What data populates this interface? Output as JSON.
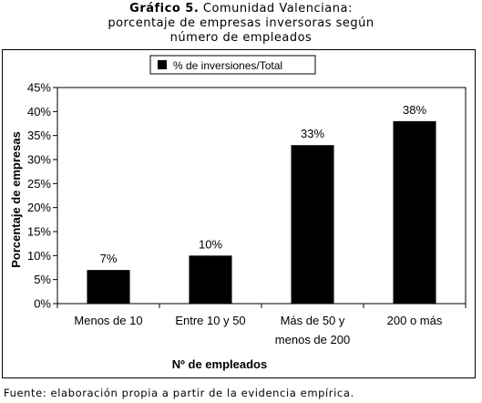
{
  "header": {
    "title_bold": "Gráfico 5.",
    "title_rest": " Comunidad Valenciana:",
    "line2": "porcentaje de empresas inversoras según",
    "line3": "número de empleados"
  },
  "chart_data": {
    "type": "bar",
    "categories": [
      "Menos de 10",
      "Entre 10 y 50",
      "Más de 50 y menos de 200",
      "200 o más"
    ],
    "category_lines": [
      [
        "Menos de 10"
      ],
      [
        "Entre 10 y 50"
      ],
      [
        "Más de 50 y",
        "menos de 200"
      ],
      [
        "200 o más"
      ]
    ],
    "series": [
      {
        "name": "% de inversiones/Total",
        "values": [
          7,
          10,
          33,
          38
        ]
      }
    ],
    "data_labels": [
      "7%",
      "10%",
      "33%",
      "38%"
    ],
    "yticks": [
      0,
      5,
      10,
      15,
      20,
      25,
      30,
      35,
      40,
      45
    ],
    "ytick_labels": [
      "0%",
      "5%",
      "10%",
      "15%",
      "20%",
      "25%",
      "30%",
      "35%",
      "40%",
      "45%"
    ],
    "ylim": [
      0,
      45
    ],
    "xlabel": "Nº de empleados",
    "ylabel": "Porcentaje de empresas",
    "legend_position": "top-center",
    "bar_color": "#000000",
    "grid": false
  },
  "footer": {
    "source": "Fuente: elaboración propia a partir de la evidencia empírica."
  }
}
